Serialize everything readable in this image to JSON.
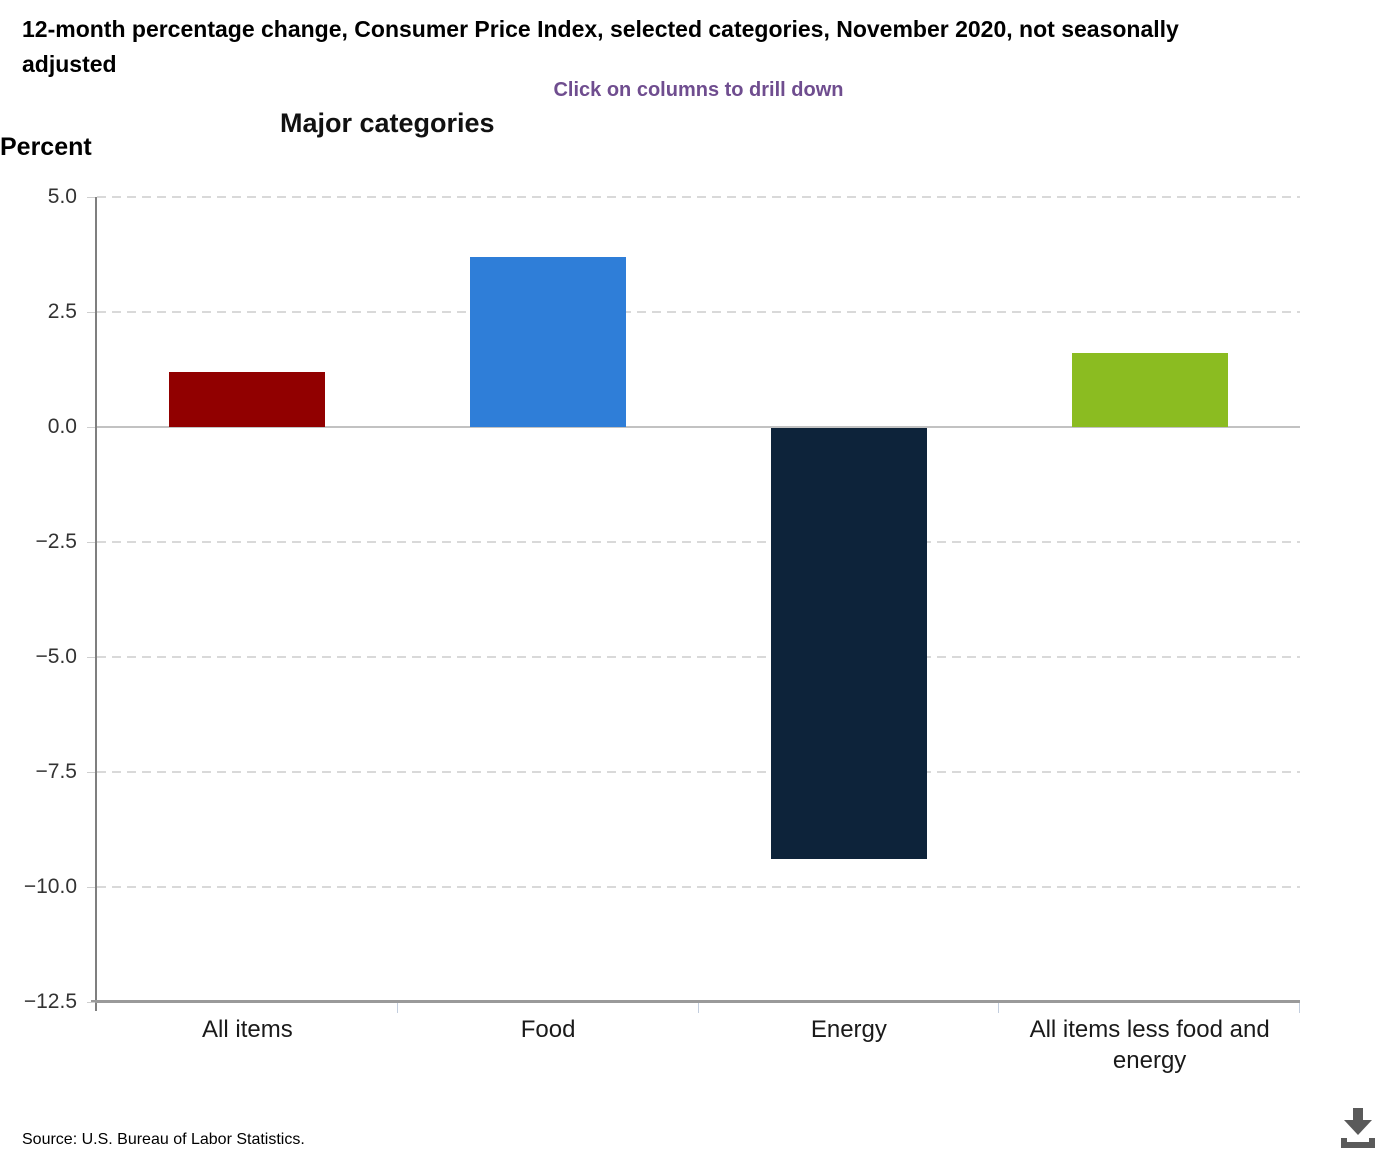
{
  "header": {
    "title": "12-month percentage change, Consumer Price Index, selected categories, November 2020, not seasonally adjusted",
    "drilldown_hint": "Click on columns to drill down"
  },
  "chart_data": {
    "type": "bar",
    "title": "Major categories",
    "ylabel": "Percent",
    "categories": [
      "All items",
      "Food",
      "Energy",
      "All items less food and energy"
    ],
    "values": [
      1.2,
      3.7,
      -9.4,
      1.6
    ],
    "bar_colors": [
      "#910000",
      "#2f7ed8",
      "#0d233a",
      "#8bbc21"
    ],
    "ylim": [
      -12.5,
      5.0
    ],
    "ytick_values": [
      5.0,
      2.5,
      0.0,
      -2.5,
      -5.0,
      -7.5,
      -10.0,
      -12.5
    ],
    "ytick_labels": [
      "5.0",
      "2.5",
      "0.0",
      "−2.5",
      "−5.0",
      "−7.5",
      "−10.0",
      "−12.5"
    ],
    "grid": "horizontal-dashed",
    "legend": "none",
    "bars_clickable": true
  },
  "footer": {
    "source": "Source: U.S. Bureau of Labor Statistics."
  },
  "icons": {
    "download": "download-icon"
  },
  "theme": {
    "hint_color": "#6f4d8f",
    "grid_color": "#d9d9d9",
    "zero_color": "#c2c2c2",
    "axis_color": "#7f7f7f",
    "bottom_axis_color": "#9a9a9a",
    "xtick_color": "#c3cede",
    "icon_color": "#5a5a5a"
  }
}
